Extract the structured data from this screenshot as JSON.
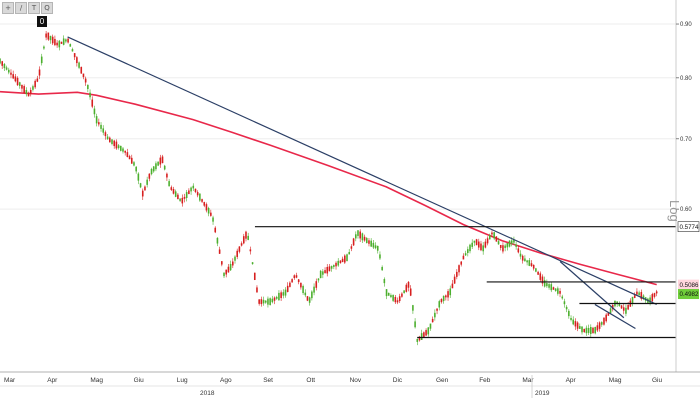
{
  "toolbar": {
    "buttons": [
      {
        "icon": "cursor-icon",
        "glyph": "+"
      },
      {
        "icon": "pencil-icon",
        "glyph": "/"
      },
      {
        "icon": "text-icon",
        "glyph": "T"
      },
      {
        "icon": "magnifier-icon",
        "glyph": "Q"
      }
    ],
    "badge": "0"
  },
  "scale_label": "Log",
  "chart_data": {
    "type": "candlestick",
    "y_scale": "log",
    "ylim": [
      0.42,
      0.92
    ],
    "y_ticks": [
      "0.90",
      "0.80",
      "0.70",
      "0.60"
    ],
    "x_ticks": [
      "Mar",
      "Apr",
      "Mag",
      "Giu",
      "Lug",
      "Ago",
      "Set",
      "Ott",
      "Nov",
      "Dic",
      "Gen",
      "Feb",
      "Mar",
      "Apr",
      "Mag",
      "Giu"
    ],
    "years": [
      "2018",
      "2019"
    ],
    "colors": {
      "up": "#4caf2e",
      "down": "#d71f1f",
      "ma": "#e8284a",
      "trend": "#2b3f66",
      "level": "#111111"
    },
    "price_path": [
      {
        "t": 0,
        "v": 0.83
      },
      {
        "t": 1,
        "v": 0.79
      },
      {
        "t": 1.5,
        "v": 0.77
      },
      {
        "t": 2,
        "v": 0.8
      },
      {
        "t": 2.4,
        "v": 0.88
      },
      {
        "t": 3,
        "v": 0.86
      },
      {
        "t": 3.5,
        "v": 0.87
      },
      {
        "t": 4,
        "v": 0.83
      },
      {
        "t": 4.5,
        "v": 0.79
      },
      {
        "t": 5,
        "v": 0.73
      },
      {
        "t": 5.6,
        "v": 0.7
      },
      {
        "t": 6.5,
        "v": 0.68
      },
      {
        "t": 7,
        "v": 0.66
      },
      {
        "t": 7.4,
        "v": 0.62
      },
      {
        "t": 7.8,
        "v": 0.65
      },
      {
        "t": 8.4,
        "v": 0.67
      },
      {
        "t": 8.8,
        "v": 0.63
      },
      {
        "t": 9.4,
        "v": 0.61
      },
      {
        "t": 10,
        "v": 0.63
      },
      {
        "t": 10.5,
        "v": 0.61
      },
      {
        "t": 11,
        "v": 0.59
      },
      {
        "t": 11.6,
        "v": 0.52
      },
      {
        "t": 12,
        "v": 0.53
      },
      {
        "t": 12.8,
        "v": 0.57
      },
      {
        "t": 13.4,
        "v": 0.49
      },
      {
        "t": 14,
        "v": 0.49
      },
      {
        "t": 14.8,
        "v": 0.5
      },
      {
        "t": 15.3,
        "v": 0.52
      },
      {
        "t": 16,
        "v": 0.49
      },
      {
        "t": 16.6,
        "v": 0.52
      },
      {
        "t": 17.3,
        "v": 0.53
      },
      {
        "t": 18,
        "v": 0.54
      },
      {
        "t": 18.5,
        "v": 0.57
      },
      {
        "t": 19,
        "v": 0.56
      },
      {
        "t": 19.6,
        "v": 0.55
      },
      {
        "t": 20,
        "v": 0.5
      },
      {
        "t": 20.6,
        "v": 0.49
      },
      {
        "t": 21.2,
        "v": 0.51
      },
      {
        "t": 21.6,
        "v": 0.45
      },
      {
        "t": 22.2,
        "v": 0.46
      },
      {
        "t": 22.8,
        "v": 0.49
      },
      {
        "t": 23.3,
        "v": 0.5
      },
      {
        "t": 24,
        "v": 0.54
      },
      {
        "t": 24.6,
        "v": 0.56
      },
      {
        "t": 25,
        "v": 0.55
      },
      {
        "t": 25.5,
        "v": 0.57
      },
      {
        "t": 26,
        "v": 0.55
      },
      {
        "t": 26.6,
        "v": 0.56
      },
      {
        "t": 27,
        "v": 0.54
      },
      {
        "t": 27.6,
        "v": 0.53
      },
      {
        "t": 28.2,
        "v": 0.51
      },
      {
        "t": 29,
        "v": 0.5
      },
      {
        "t": 29.6,
        "v": 0.47
      },
      {
        "t": 30.2,
        "v": 0.46
      },
      {
        "t": 30.8,
        "v": 0.46
      },
      {
        "t": 31.3,
        "v": 0.47
      },
      {
        "t": 31.9,
        "v": 0.49
      },
      {
        "t": 32.4,
        "v": 0.48
      },
      {
        "t": 33,
        "v": 0.5
      },
      {
        "t": 33.6,
        "v": 0.49
      },
      {
        "t": 34,
        "v": 0.5
      }
    ],
    "moving_average": [
      {
        "t": 0,
        "v": 0.776
      },
      {
        "t": 2,
        "v": 0.772
      },
      {
        "t": 4,
        "v": 0.775
      },
      {
        "t": 5,
        "v": 0.77
      },
      {
        "t": 7,
        "v": 0.755
      },
      {
        "t": 10,
        "v": 0.73
      },
      {
        "t": 12,
        "v": 0.71
      },
      {
        "t": 14,
        "v": 0.69
      },
      {
        "t": 17,
        "v": 0.66
      },
      {
        "t": 20,
        "v": 0.63
      },
      {
        "t": 22,
        "v": 0.605
      },
      {
        "t": 24,
        "v": 0.58
      },
      {
        "t": 26,
        "v": 0.56
      },
      {
        "t": 28,
        "v": 0.545
      },
      {
        "t": 30,
        "v": 0.532
      },
      {
        "t": 32,
        "v": 0.52
      },
      {
        "t": 34,
        "v": 0.5086
      }
    ],
    "trendlines": [
      {
        "t1": 3.5,
        "v1": 0.875,
        "t2": 34,
        "v2": 0.487
      },
      {
        "t1": 29,
        "v1": 0.535,
        "t2": 32.3,
        "v2": 0.473
      },
      {
        "t1": 30.8,
        "v1": 0.487,
        "t2": 32.9,
        "v2": 0.462
      }
    ],
    "levels": [
      {
        "v": 0.5774,
        "t1": 13.2,
        "t2": 34,
        "label": "0.5774",
        "fill": "#ffffff",
        "text": "#111111"
      },
      {
        "v": 0.5116,
        "t1": 25.2,
        "t2": 34,
        "label": "",
        "fill": "",
        "text": ""
      },
      {
        "v": 0.488,
        "t1": 30.0,
        "t2": 34,
        "label": "",
        "fill": "",
        "text": ""
      },
      {
        "v": 0.453,
        "t1": 21.6,
        "t2": 34,
        "label": "",
        "fill": "",
        "text": ""
      }
    ],
    "price_badges": [
      {
        "v": 0.5086,
        "label": "0.5086",
        "fill": "#ffd6dd",
        "text": "#b0102a"
      },
      {
        "v": 0.4982,
        "label": "0.4982",
        "fill": "#6fce3a",
        "text": "#ffffff"
      }
    ]
  }
}
